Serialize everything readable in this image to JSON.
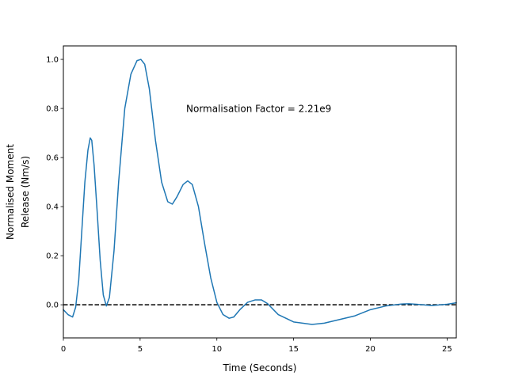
{
  "chart_data": {
    "type": "line",
    "title": "",
    "xlabel": "Time (Seconds)",
    "ylabel_lines": [
      "Normalised Moment",
      "Release (Nm/s)"
    ],
    "xlim": [
      0,
      25.6
    ],
    "ylim": [
      -0.135,
      1.055
    ],
    "xticks": [
      0,
      5,
      10,
      15,
      20,
      25
    ],
    "xtick_labels": [
      "0",
      "5",
      "10",
      "15",
      "20",
      "25"
    ],
    "yticks": [
      0.0,
      0.2,
      0.4,
      0.6,
      0.8,
      1.0
    ],
    "ytick_labels": [
      "0.0",
      "0.2",
      "0.4",
      "0.6",
      "0.8",
      "1.0"
    ],
    "grid": false,
    "legend": "none",
    "annotation": {
      "text": "Normalisation Factor = 2.21e9",
      "x": 8.0,
      "y": 0.8
    },
    "reference_line": {
      "y": 0.0,
      "style": "dashed",
      "color": "#000000"
    },
    "series": [
      {
        "color": "#1f77b4",
        "x": [
          0,
          0.3,
          0.6,
          0.8,
          1.0,
          1.2,
          1.4,
          1.6,
          1.75,
          1.85,
          2.0,
          2.2,
          2.4,
          2.6,
          2.8,
          3.0,
          3.3,
          3.6,
          4.0,
          4.4,
          4.8,
          5.05,
          5.3,
          5.6,
          6.0,
          6.4,
          6.8,
          7.1,
          7.4,
          7.8,
          8.1,
          8.4,
          8.8,
          9.2,
          9.6,
          10.0,
          10.4,
          10.8,
          11.1,
          11.5,
          12.0,
          12.5,
          12.9,
          13.3,
          14.0,
          15.0,
          16.2,
          17.0,
          18.0,
          19.0,
          20.0,
          21.0,
          22.0,
          22.5,
          23.0,
          24.0,
          25.0,
          25.6
        ],
        "y": [
          -0.02,
          -0.04,
          -0.05,
          -0.01,
          0.1,
          0.3,
          0.5,
          0.63,
          0.68,
          0.67,
          0.57,
          0.38,
          0.18,
          0.04,
          -0.005,
          0.03,
          0.22,
          0.5,
          0.8,
          0.94,
          0.995,
          1.0,
          0.98,
          0.88,
          0.67,
          0.5,
          0.42,
          0.41,
          0.44,
          0.49,
          0.505,
          0.49,
          0.4,
          0.25,
          0.11,
          0.01,
          -0.04,
          -0.055,
          -0.05,
          -0.02,
          0.01,
          0.02,
          0.02,
          0.005,
          -0.04,
          -0.07,
          -0.08,
          -0.075,
          -0.06,
          -0.045,
          -0.02,
          -0.005,
          0.003,
          0.004,
          0.002,
          -0.003,
          0.002,
          0.008
        ]
      }
    ]
  }
}
